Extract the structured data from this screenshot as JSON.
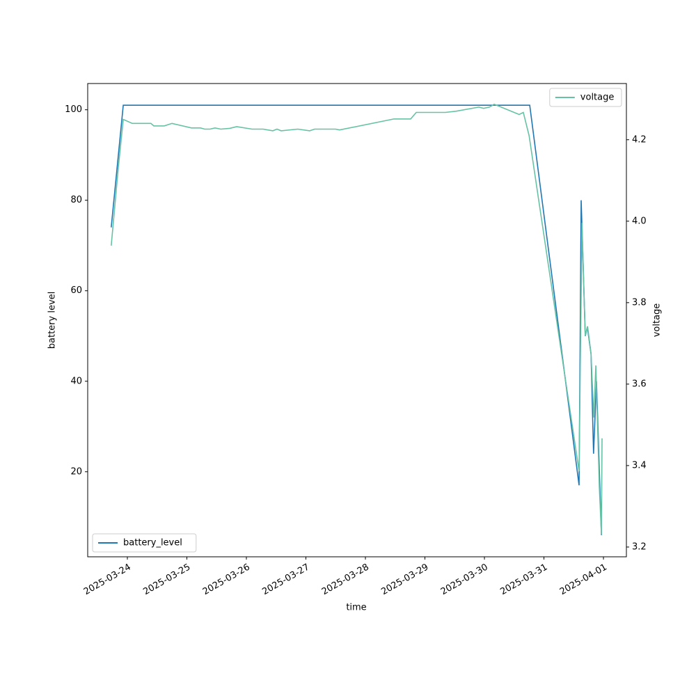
{
  "chart_data": {
    "type": "line",
    "xlabel": "time",
    "ylabel": "battery level",
    "y2label": "voltage",
    "xlim": [
      "2025-03-23T08:00",
      "2025-04-01T09:15"
    ],
    "xticks": [
      "2025-03-24",
      "2025-03-25",
      "2025-03-26",
      "2025-03-27",
      "2025-03-28",
      "2025-03-29",
      "2025-03-30",
      "2025-03-31",
      "2025-04-01"
    ],
    "ylim": [
      1.2,
      105.8
    ],
    "yticks": [
      20,
      40,
      60,
      80,
      100
    ],
    "y2lim": [
      3.176,
      4.338
    ],
    "y2ticks": [
      3.2,
      3.4,
      3.6,
      3.8,
      {
        "value": 4,
        "label": "4.0"
      },
      4.2
    ],
    "series": [
      {
        "name": "battery_level",
        "color": "#1f77b4",
        "legend": "lower left",
        "x": [
          "2025-03-23T17:30",
          "2025-03-23T22:20",
          "2025-03-30T18:15",
          "2025-03-31T14:10",
          "2025-03-31T15:00",
          "2025-03-31T16:40",
          "2025-03-31T17:30",
          "2025-03-31T19:00",
          "2025-03-31T20:00",
          "2025-03-31T21:10",
          "2025-03-31T23:10"
        ],
        "values": [
          74,
          101,
          101,
          17,
          80,
          50,
          52,
          46,
          24,
          40,
          6
        ]
      },
      {
        "name": "voltage",
        "color": "#66c2a5",
        "axis": "y2",
        "legend": "upper right",
        "x": [
          "2025-03-23T17:30",
          "2025-03-23T20:20",
          "2025-03-23T22:20",
          "2025-03-24T02:00",
          "2025-03-24T09:30",
          "2025-03-24T10:40",
          "2025-03-24T14:50",
          "2025-03-24T18:00",
          "2025-03-25T01:50",
          "2025-03-25T05:30",
          "2025-03-25T07:10",
          "2025-03-25T09:20",
          "2025-03-25T11:20",
          "2025-03-25T13:40",
          "2025-03-25T17:15",
          "2025-03-25T20:05",
          "2025-03-26T02:15",
          "2025-03-26T06:45",
          "2025-03-26T10:40",
          "2025-03-26T12:20",
          "2025-03-26T14:00",
          "2025-03-26T20:45",
          "2025-03-27T01:30",
          "2025-03-27T03:30",
          "2025-03-27T11:55",
          "2025-03-27T13:35",
          "2025-03-28T11:30",
          "2025-03-28T18:15",
          "2025-03-28T20:30",
          "2025-03-29T08:15",
          "2025-03-29T12:30",
          "2025-03-29T21:45",
          "2025-03-29T23:40",
          "2025-03-30T02:00",
          "2025-03-30T03:55",
          "2025-03-30T14:00",
          "2025-03-30T15:40",
          "2025-03-30T18:00",
          "2025-03-31T14:10",
          "2025-03-31T15:20",
          "2025-03-31T16:40",
          "2025-03-31T17:35",
          "2025-03-31T19:00",
          "2025-03-31T20:05",
          "2025-03-31T20:55",
          "2025-03-31T22:20",
          "2025-03-31T23:10",
          "2025-03-31T23:25"
        ],
        "values": [
          3.94,
          4.13,
          4.25,
          4.24,
          4.24,
          4.234,
          4.234,
          4.24,
          4.229,
          4.229,
          4.226,
          4.226,
          4.229,
          4.226,
          4.228,
          4.232,
          4.226,
          4.226,
          4.222,
          4.226,
          4.222,
          4.226,
          4.222,
          4.226,
          4.226,
          4.224,
          4.251,
          4.251,
          4.267,
          4.267,
          4.27,
          4.28,
          4.277,
          4.28,
          4.287,
          4.262,
          4.267,
          4.21,
          3.386,
          3.996,
          3.718,
          3.742,
          3.675,
          3.518,
          3.646,
          3.347,
          3.231,
          3.467
        ]
      }
    ]
  }
}
